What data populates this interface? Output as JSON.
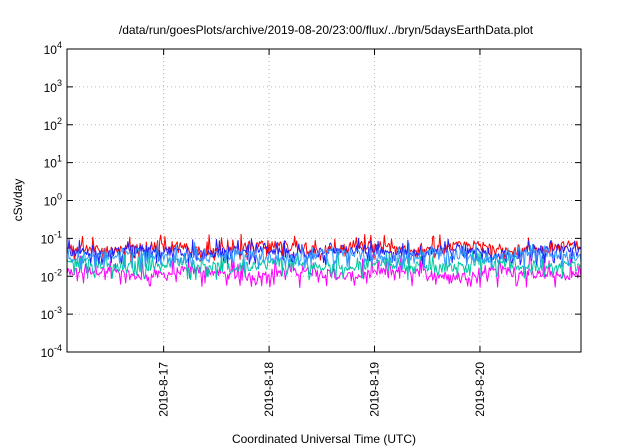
{
  "chart_data": {
    "type": "line",
    "title": "/data/run/goesPlots/archive/2019-08-20/23:00/flux/../bryn/5daysEarthData.plot",
    "xlabel": "Coordinated Universal Time (UTC)",
    "ylabel": "cSv/day",
    "y_scale": "log",
    "ylim": [
      0.0001,
      10000
    ],
    "y_ticks": [
      {
        "base": "10",
        "exp": "-4",
        "value": 0.0001
      },
      {
        "base": "10",
        "exp": "-3",
        "value": 0.001
      },
      {
        "base": "10",
        "exp": "-2",
        "value": 0.01
      },
      {
        "base": "10",
        "exp": "-1",
        "value": 0.1
      },
      {
        "base": "10",
        "exp": "0",
        "value": 1
      },
      {
        "base": "10",
        "exp": "1",
        "value": 10
      },
      {
        "base": "10",
        "exp": "2",
        "value": 100
      },
      {
        "base": "10",
        "exp": "3",
        "value": 1000
      },
      {
        "base": "10",
        "exp": "4",
        "value": 10000
      }
    ],
    "xlim": [
      "2019-08-16T02:00",
      "2019-08-20T23:00"
    ],
    "x_ticks": [
      {
        "label": "2019-8-17",
        "value": "2019-08-17T00:00"
      },
      {
        "label": "2019-8-18",
        "value": "2019-08-18T00:00"
      },
      {
        "label": "2019-8-19",
        "value": "2019-08-19T00:00"
      },
      {
        "label": "2019-8-20",
        "value": "2019-08-20T00:00"
      }
    ],
    "grid": true,
    "legend": "none",
    "series": [
      {
        "color": "#ff00ff",
        "approx_range": [
          0.005,
          0.04
        ],
        "typical": 0.012
      },
      {
        "color": "#00c8a0",
        "approx_range": [
          0.008,
          0.05
        ],
        "typical": 0.02
      },
      {
        "color": "#ff0000",
        "approx_range": [
          0.025,
          0.13
        ],
        "typical": 0.055
      },
      {
        "color": "#1f1fff",
        "approx_range": [
          0.02,
          0.1
        ],
        "typical": 0.045
      },
      {
        "color": "#3399ff",
        "approx_range": [
          0.015,
          0.08
        ],
        "typical": 0.035
      }
    ]
  }
}
